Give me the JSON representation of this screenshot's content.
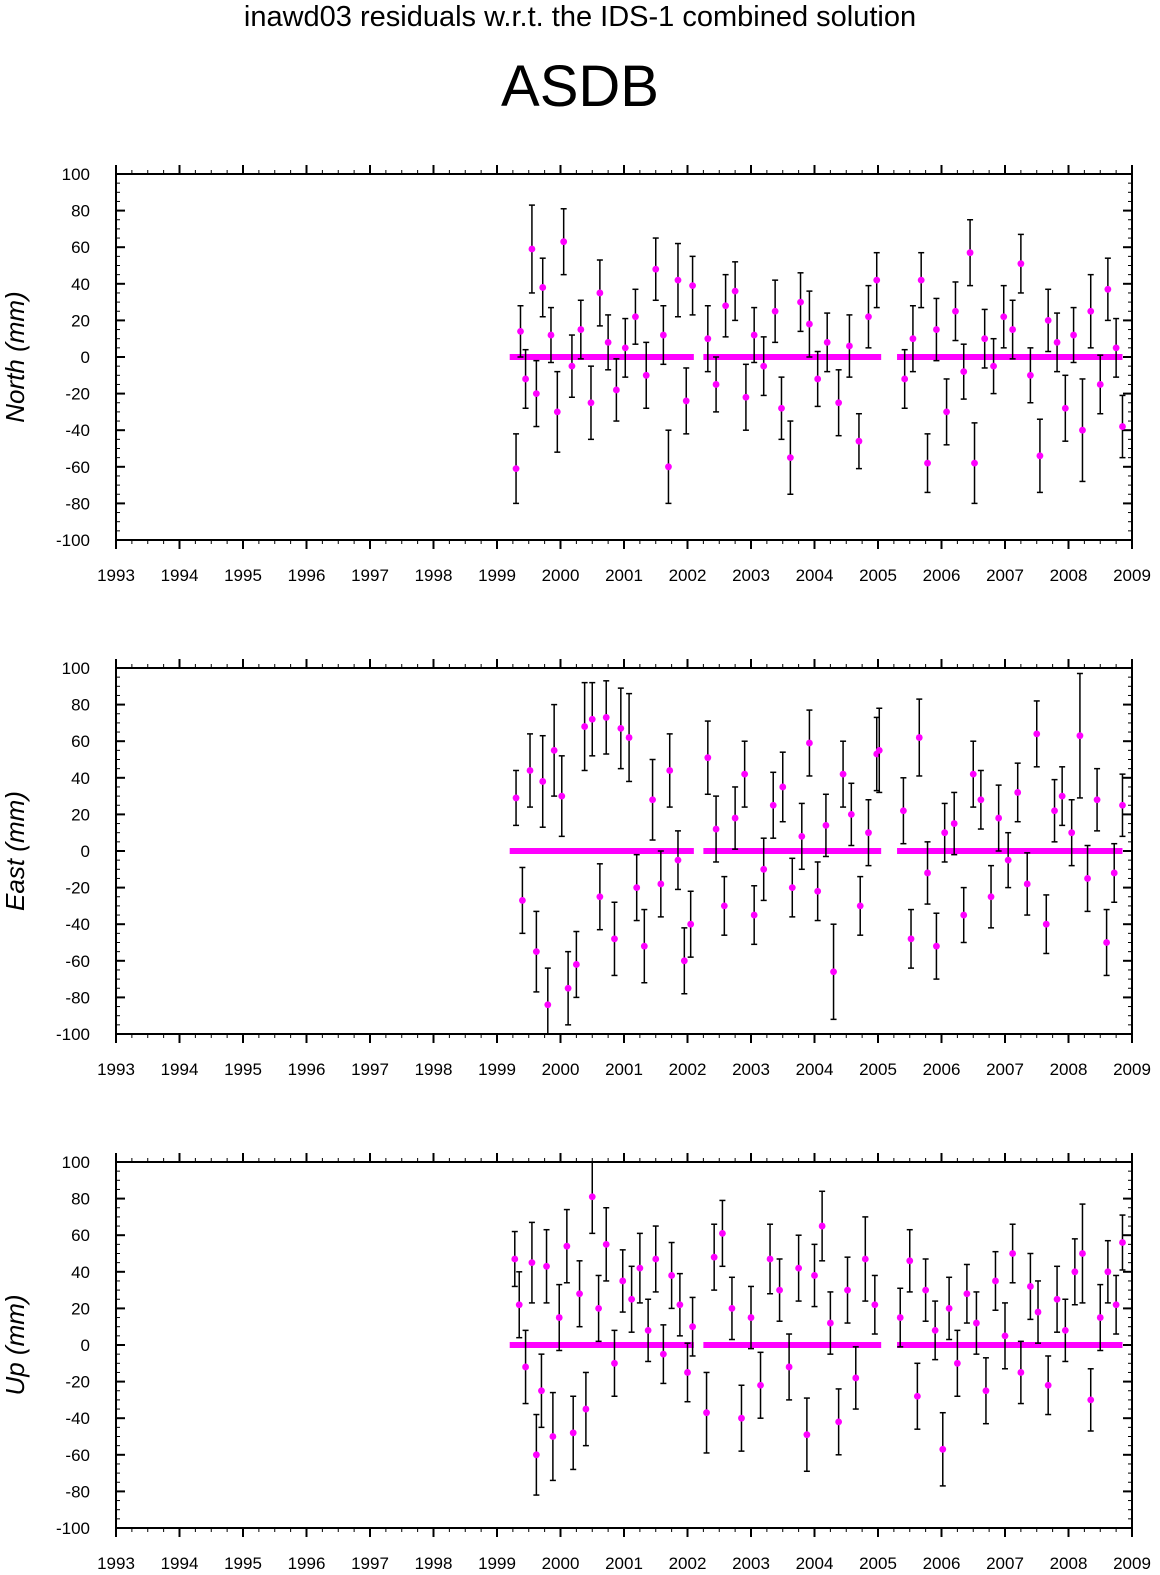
{
  "figure": {
    "suptitle": "inawd03 residuals w.r.t. the IDS-1 combined solution",
    "title": "ASDB"
  },
  "colors": {
    "marker": "#ff00ff",
    "errorbar": "#000000",
    "axis": "#000000"
  },
  "chart_data": [
    {
      "type": "scatter",
      "panel": "north",
      "ylabel": "North (mm)",
      "xlim": [
        1993,
        2009
      ],
      "ylim": [
        -100,
        100
      ],
      "xticks": [
        "1993",
        "1994",
        "1995",
        "1996",
        "1997",
        "1998",
        "1999",
        "2000",
        "2001",
        "2002",
        "2003",
        "2004",
        "2005",
        "2006",
        "2007",
        "2008",
        "2009"
      ],
      "yticks": [
        "100",
        "80",
        "60",
        "40",
        "20",
        "0",
        "-20",
        "-40",
        "-60",
        "-80",
        "-100"
      ],
      "grid": false,
      "mean_segments": [
        [
          1999.2,
          2002.1
        ],
        [
          2002.25,
          2005.05
        ],
        [
          2005.3,
          2008.85
        ]
      ],
      "series": [
        {
          "x": [
            1999.3,
            1999.37,
            1999.45,
            1999.55,
            1999.62,
            1999.72,
            1999.85,
            1999.95,
            2000.05,
            2000.18,
            2000.32,
            2000.48,
            2000.62,
            2000.75,
            2000.88,
            2001.02,
            2001.18,
            2001.35,
            2001.5,
            2001.62,
            2001.7,
            2001.85,
            2001.98,
            2002.08,
            2002.32,
            2002.45,
            2002.6,
            2002.75,
            2002.92,
            2003.05,
            2003.2,
            2003.38,
            2003.48,
            2003.62,
            2003.78,
            2003.92,
            2004.05,
            2004.2,
            2004.38,
            2004.55,
            2004.7,
            2004.85,
            2004.98,
            2005.42,
            2005.55,
            2005.68,
            2005.78,
            2005.92,
            2006.08,
            2006.22,
            2006.35,
            2006.45,
            2006.52,
            2006.68,
            2006.82,
            2006.98,
            2007.12,
            2007.25,
            2007.4,
            2007.55,
            2007.68,
            2007.82,
            2007.95,
            2008.08,
            2008.22,
            2008.35,
            2008.5,
            2008.62,
            2008.75,
            2008.85
          ],
          "y": [
            -61,
            14,
            -12,
            59,
            -20,
            38,
            12,
            -30,
            63,
            -5,
            15,
            -25,
            35,
            8,
            -18,
            5,
            22,
            -10,
            48,
            12,
            -60,
            42,
            -24,
            39,
            10,
            -15,
            28,
            36,
            -22,
            12,
            -5,
            25,
            -28,
            -55,
            30,
            18,
            -12,
            8,
            -25,
            6,
            -46,
            22,
            42,
            -12,
            10,
            42,
            -58,
            15,
            -30,
            25,
            -8,
            57,
            -58,
            10,
            -5,
            22,
            15,
            51,
            -10,
            -54,
            20,
            8,
            -28,
            12,
            -40,
            25,
            -15,
            37,
            5,
            -38
          ],
          "err": [
            19,
            14,
            16,
            24,
            18,
            16,
            15,
            22,
            18,
            17,
            16,
            20,
            18,
            15,
            17,
            16,
            15,
            18,
            17,
            16,
            20,
            20,
            18,
            16,
            18,
            15,
            17,
            16,
            18,
            15,
            16,
            17,
            17,
            20,
            16,
            18,
            15,
            16,
            18,
            17,
            15,
            17,
            15,
            16,
            18,
            15,
            16,
            17,
            18,
            16,
            15,
            18,
            22,
            16,
            15,
            17,
            16,
            16,
            15,
            20,
            17,
            16,
            18,
            15,
            28,
            20,
            16,
            17,
            16,
            17
          ]
        }
      ]
    },
    {
      "type": "scatter",
      "panel": "east",
      "ylabel": "East (mm)",
      "xlim": [
        1993,
        2009
      ],
      "ylim": [
        -100,
        100
      ],
      "xticks": [
        "1993",
        "1994",
        "1995",
        "1996",
        "1997",
        "1998",
        "1999",
        "2000",
        "2001",
        "2002",
        "2003",
        "2004",
        "2005",
        "2006",
        "2007",
        "2008",
        "2009"
      ],
      "yticks": [
        "100",
        "80",
        "60",
        "40",
        "20",
        "0",
        "-20",
        "-40",
        "-60",
        "-80",
        "-100"
      ],
      "grid": false,
      "mean_segments": [
        [
          1999.2,
          2002.1
        ],
        [
          2002.25,
          2005.05
        ],
        [
          2005.3,
          2008.85
        ]
      ],
      "series": [
        {
          "x": [
            1999.3,
            1999.4,
            1999.52,
            1999.62,
            1999.72,
            1999.8,
            1999.9,
            2000.02,
            2000.12,
            2000.25,
            2000.38,
            2000.5,
            2000.62,
            2000.72,
            2000.85,
            2000.95,
            2001.08,
            2001.2,
            2001.32,
            2001.45,
            2001.58,
            2001.72,
            2001.85,
            2001.95,
            2002.05,
            2002.32,
            2002.45,
            2002.58,
            2002.75,
            2002.9,
            2003.05,
            2003.2,
            2003.35,
            2003.5,
            2003.65,
            2003.8,
            2003.92,
            2004.05,
            2004.18,
            2004.3,
            2004.45,
            2004.58,
            2004.72,
            2004.85,
            2004.98,
            2005.02,
            2005.4,
            2005.52,
            2005.65,
            2005.78,
            2005.92,
            2006.05,
            2006.2,
            2006.35,
            2006.5,
            2006.62,
            2006.78,
            2006.9,
            2007.05,
            2007.2,
            2007.35,
            2007.5,
            2007.65,
            2007.78,
            2007.9,
            2008.05,
            2008.18,
            2008.3,
            2008.45,
            2008.6,
            2008.72,
            2008.85
          ],
          "y": [
            29,
            -27,
            44,
            -55,
            38,
            -84,
            55,
            30,
            -75,
            -62,
            68,
            72,
            -25,
            73,
            -48,
            67,
            62,
            -20,
            -52,
            28,
            -18,
            44,
            -5,
            -60,
            -40,
            51,
            12,
            -30,
            18,
            42,
            -35,
            -10,
            25,
            35,
            -20,
            8,
            59,
            -22,
            14,
            -66,
            42,
            20,
            -30,
            10,
            53,
            55,
            22,
            -48,
            62,
            -12,
            -52,
            10,
            15,
            -35,
            42,
            28,
            -25,
            18,
            -5,
            32,
            -18,
            64,
            -40,
            22,
            30,
            10,
            63,
            -15,
            28,
            -50,
            -12,
            25
          ],
          "err": [
            15,
            18,
            20,
            22,
            25,
            20,
            25,
            22,
            20,
            18,
            24,
            20,
            18,
            20,
            20,
            22,
            24,
            18,
            20,
            22,
            18,
            20,
            16,
            18,
            18,
            20,
            18,
            16,
            17,
            18,
            16,
            17,
            18,
            19,
            16,
            18,
            18,
            16,
            17,
            26,
            18,
            17,
            16,
            18,
            20,
            23,
            18,
            16,
            21,
            17,
            18,
            16,
            17,
            15,
            18,
            16,
            17,
            18,
            15,
            16,
            17,
            18,
            16,
            17,
            16,
            18,
            34,
            18,
            17,
            18,
            16,
            17
          ]
        }
      ]
    },
    {
      "type": "scatter",
      "panel": "up",
      "ylabel": "Up (mm)",
      "xlim": [
        1993,
        2009
      ],
      "ylim": [
        -100,
        100
      ],
      "xticks": [
        "1993",
        "1994",
        "1995",
        "1996",
        "1997",
        "1998",
        "1999",
        "2000",
        "2001",
        "2002",
        "2003",
        "2004",
        "2005",
        "2006",
        "2007",
        "2008",
        "2009"
      ],
      "yticks": [
        "100",
        "80",
        "60",
        "40",
        "20",
        "0",
        "-20",
        "-40",
        "-60",
        "-80",
        "-100"
      ],
      "grid": false,
      "mean_segments": [
        [
          1999.2,
          2002.1
        ],
        [
          2002.25,
          2005.05
        ],
        [
          2005.3,
          2008.85
        ]
      ],
      "series": [
        {
          "x": [
            1999.28,
            1999.35,
            1999.45,
            1999.55,
            1999.62,
            1999.7,
            1999.78,
            1999.88,
            1999.98,
            2000.1,
            2000.2,
            2000.3,
            2000.4,
            2000.5,
            2000.6,
            2000.72,
            2000.85,
            2000.98,
            2001.12,
            2001.25,
            2001.38,
            2001.5,
            2001.62,
            2001.75,
            2001.88,
            2002.0,
            2002.08,
            2002.3,
            2002.42,
            2002.55,
            2002.7,
            2002.85,
            2003.0,
            2003.15,
            2003.3,
            2003.45,
            2003.6,
            2003.75,
            2003.88,
            2004.0,
            2004.12,
            2004.25,
            2004.38,
            2004.52,
            2004.65,
            2004.8,
            2004.95,
            2005.35,
            2005.5,
            2005.62,
            2005.75,
            2005.9,
            2006.02,
            2006.12,
            2006.25,
            2006.4,
            2006.55,
            2006.7,
            2006.85,
            2007.0,
            2007.12,
            2007.25,
            2007.4,
            2007.52,
            2007.68,
            2007.82,
            2007.95,
            2008.1,
            2008.22,
            2008.35,
            2008.5,
            2008.62,
            2008.75,
            2008.85
          ],
          "y": [
            47,
            22,
            -12,
            45,
            -60,
            -25,
            43,
            -50,
            15,
            54,
            -48,
            28,
            -35,
            81,
            20,
            55,
            -10,
            35,
            25,
            42,
            8,
            47,
            -5,
            38,
            22,
            -15,
            10,
            -37,
            48,
            61,
            20,
            -40,
            15,
            -22,
            47,
            30,
            -12,
            42,
            -49,
            38,
            65,
            12,
            -42,
            30,
            -18,
            47,
            22,
            15,
            46,
            -28,
            30,
            8,
            -57,
            20,
            -10,
            28,
            12,
            -25,
            35,
            5,
            50,
            -15,
            32,
            18,
            -22,
            25,
            8,
            40,
            50,
            -30,
            15,
            40,
            22,
            56
          ],
          "err": [
            15,
            18,
            20,
            22,
            22,
            20,
            20,
            24,
            18,
            20,
            20,
            18,
            20,
            20,
            18,
            20,
            18,
            17,
            18,
            19,
            17,
            18,
            16,
            18,
            17,
            16,
            16,
            22,
            18,
            18,
            17,
            18,
            17,
            18,
            19,
            17,
            18,
            18,
            20,
            17,
            19,
            17,
            18,
            18,
            17,
            23,
            16,
            16,
            17,
            18,
            17,
            16,
            20,
            17,
            18,
            16,
            17,
            18,
            16,
            18,
            16,
            17,
            18,
            17,
            16,
            18,
            17,
            18,
            27,
            17,
            18,
            17,
            16,
            15
          ]
        }
      ]
    }
  ]
}
